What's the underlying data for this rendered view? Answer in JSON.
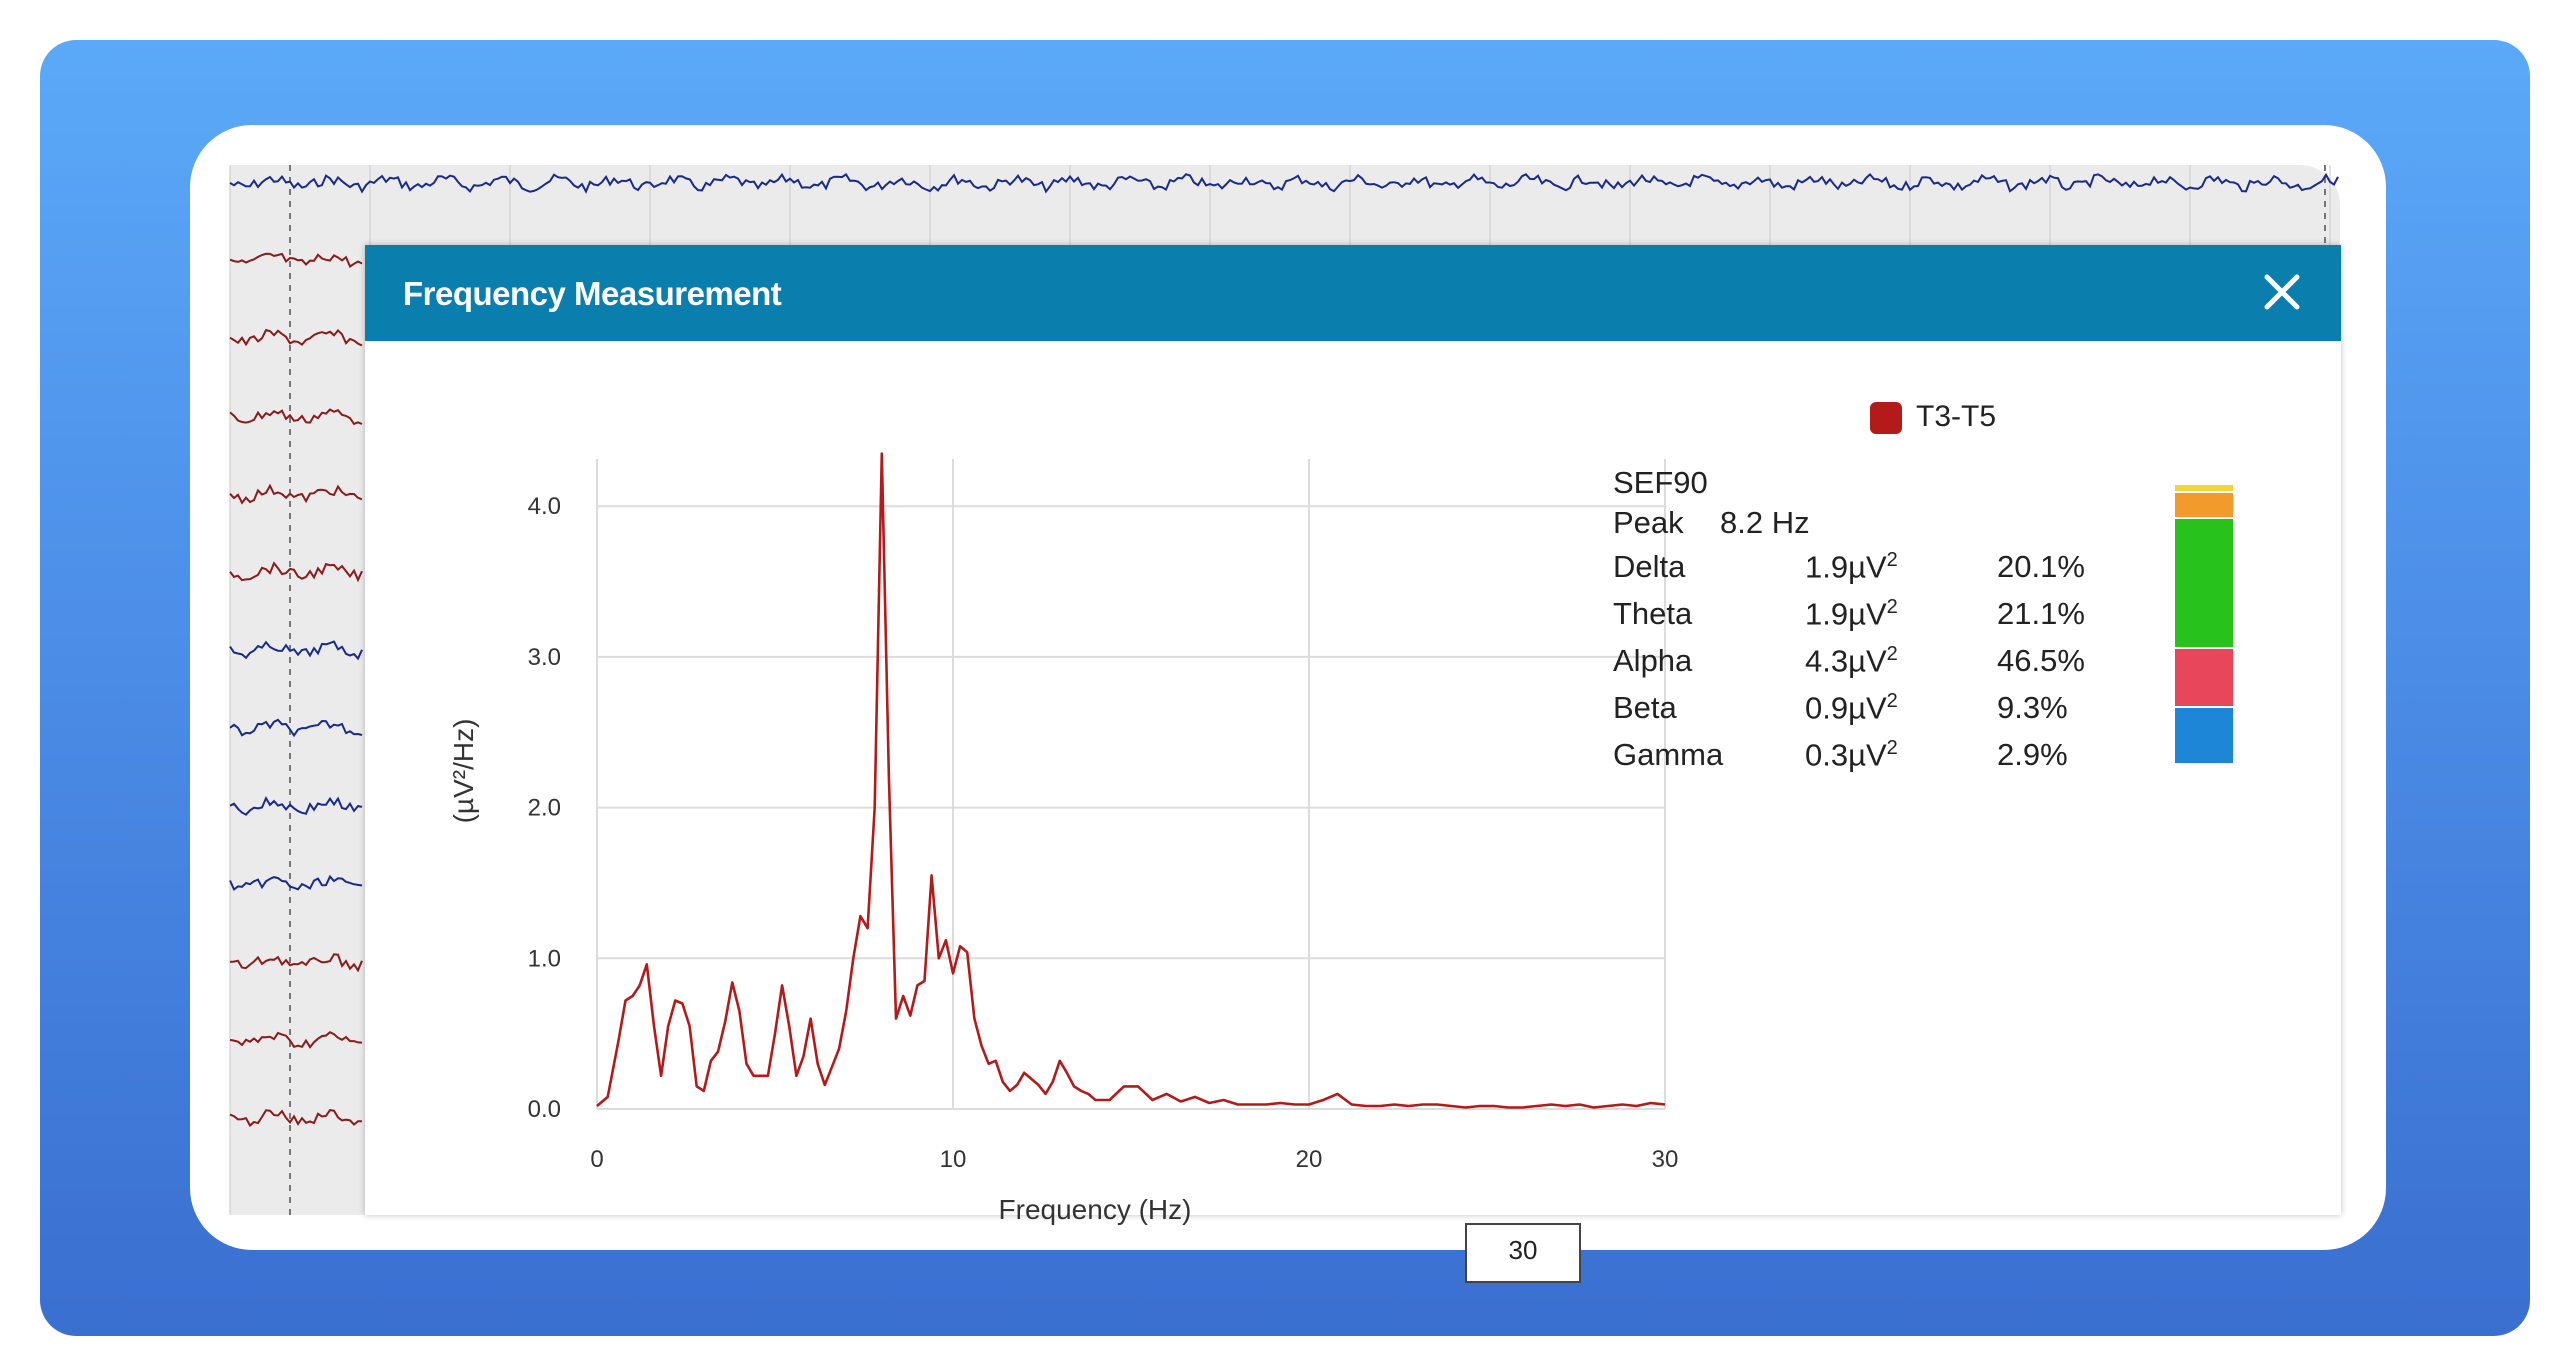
{
  "dialog": {
    "title": "Frequency Measurement"
  },
  "legend": {
    "label": "T3-T5",
    "color": "#b31b1b"
  },
  "stats": {
    "sef90_label": "SEF90",
    "peak_label": "Peak",
    "peak_value": "8.2 Hz",
    "bands": [
      {
        "name": "Delta",
        "power": "1.9µV",
        "pct": "20.1%"
      },
      {
        "name": "Theta",
        "power": "1.9µV",
        "pct": "21.1%"
      },
      {
        "name": "Alpha",
        "power": "4.3µV",
        "pct": "46.5%"
      },
      {
        "name": "Beta",
        "power": "0.9µV",
        "pct": "9.3%"
      },
      {
        "name": "Gamma",
        "power": "0.3µV",
        "pct": "2.9%"
      }
    ],
    "power_exponent": "2"
  },
  "band_bar": {
    "segments": [
      {
        "band": "Gamma",
        "fraction": 0.029,
        "color": "#f5d33a"
      },
      {
        "band": "Beta",
        "fraction": 0.093,
        "color": "#f39a2c"
      },
      {
        "band": "Alpha",
        "fraction": 0.465,
        "color": "#27c21c"
      },
      {
        "band": "Theta",
        "fraction": 0.211,
        "color": "#e8465a"
      },
      {
        "band": "Delta",
        "fraction": 0.201,
        "color": "#1d86d6"
      }
    ]
  },
  "freq_input": {
    "value": "30"
  },
  "chart_data": {
    "type": "line",
    "title": "",
    "xlabel": "Frequency (Hz)",
    "ylabel": "(µV²/Hz)",
    "xlim": [
      0,
      30
    ],
    "ylim": [
      0,
      4.3
    ],
    "xticks": [
      0,
      10,
      20,
      30
    ],
    "yticks": [
      0.0,
      1.0,
      2.0,
      3.0,
      4.0
    ],
    "ytick_labels": [
      "0.0",
      "1.0",
      "2.0",
      "3.0",
      "4.0"
    ],
    "grid": true,
    "series": [
      {
        "name": "T3-T5",
        "color": "#b31b1b",
        "x": [
          0,
          0.3,
          0.6,
          0.8,
          1.0,
          1.2,
          1.4,
          1.6,
          1.8,
          2.0,
          2.2,
          2.4,
          2.6,
          2.8,
          3.0,
          3.2,
          3.4,
          3.6,
          3.8,
          4.0,
          4.2,
          4.4,
          4.6,
          4.8,
          5.0,
          5.2,
          5.4,
          5.6,
          5.8,
          6.0,
          6.2,
          6.4,
          6.6,
          6.8,
          7.0,
          7.2,
          7.4,
          7.6,
          7.8,
          8.0,
          8.2,
          8.4,
          8.6,
          8.8,
          9.0,
          9.2,
          9.4,
          9.6,
          9.8,
          10.0,
          10.2,
          10.4,
          10.6,
          10.8,
          11.0,
          11.2,
          11.4,
          11.6,
          11.8,
          12.0,
          12.2,
          12.4,
          12.6,
          12.8,
          13.0,
          13.2,
          13.4,
          13.6,
          13.8,
          14.0,
          14.4,
          14.8,
          15.2,
          15.6,
          16.0,
          16.4,
          16.8,
          17.2,
          17.6,
          18.0,
          18.4,
          18.8,
          19.2,
          19.6,
          20.0,
          20.4,
          20.8,
          21.2,
          21.6,
          22.0,
          22.4,
          22.8,
          23.2,
          23.6,
          24.0,
          24.4,
          24.8,
          25.2,
          25.6,
          26.0,
          26.4,
          26.8,
          27.2,
          27.6,
          28.0,
          28.4,
          28.8,
          29.2,
          29.6,
          30.0
        ],
        "y": [
          0.02,
          0.08,
          0.45,
          0.72,
          0.75,
          0.82,
          0.96,
          0.55,
          0.22,
          0.55,
          0.72,
          0.7,
          0.55,
          0.15,
          0.12,
          0.32,
          0.38,
          0.58,
          0.84,
          0.65,
          0.3,
          0.22,
          0.22,
          0.22,
          0.5,
          0.82,
          0.55,
          0.22,
          0.35,
          0.6,
          0.3,
          0.16,
          0.28,
          0.4,
          0.65,
          1.0,
          1.28,
          1.2,
          2.0,
          4.35,
          2.2,
          0.6,
          0.75,
          0.62,
          0.82,
          0.85,
          1.55,
          1.0,
          1.12,
          0.9,
          1.08,
          1.04,
          0.6,
          0.42,
          0.3,
          0.32,
          0.18,
          0.12,
          0.16,
          0.24,
          0.2,
          0.16,
          0.1,
          0.18,
          0.32,
          0.24,
          0.15,
          0.12,
          0.1,
          0.06,
          0.06,
          0.15,
          0.15,
          0.06,
          0.1,
          0.05,
          0.08,
          0.04,
          0.06,
          0.03,
          0.03,
          0.03,
          0.04,
          0.03,
          0.03,
          0.06,
          0.1,
          0.03,
          0.02,
          0.02,
          0.03,
          0.02,
          0.03,
          0.03,
          0.02,
          0.01,
          0.02,
          0.02,
          0.01,
          0.01,
          0.02,
          0.03,
          0.02,
          0.03,
          0.01,
          0.02,
          0.03,
          0.02,
          0.04,
          0.03
        ]
      }
    ]
  }
}
